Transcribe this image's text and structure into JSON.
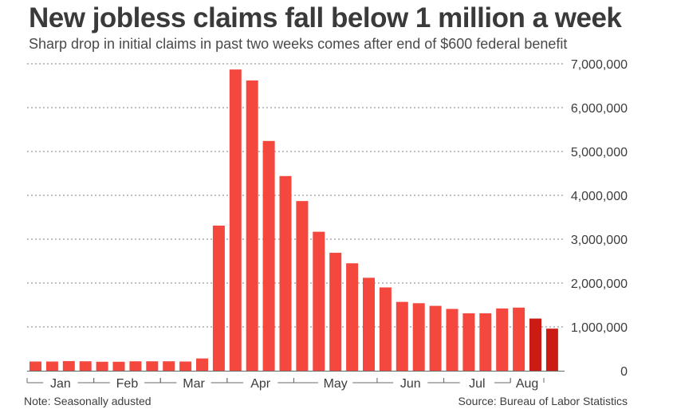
{
  "chart_data": {
    "type": "bar",
    "title": "New jobless claims fall below 1 million a week",
    "subtitle": "Sharp drop in initial claims in past two weeks comes after end of $600 federal benefit",
    "xlabel": "",
    "ylabel": "",
    "ylim": [
      0,
      7000000
    ],
    "grid": true,
    "y_ticks": [
      0,
      1000000,
      2000000,
      3000000,
      4000000,
      5000000,
      6000000,
      7000000
    ],
    "y_tick_labels": [
      "0",
      "1,000,000",
      "2,000,000",
      "3,000,000",
      "4,000,000",
      "5,000,000",
      "6,000,000",
      "7,000,000"
    ],
    "month_labels": [
      "Jan",
      "Feb",
      "Mar",
      "Apr",
      "May",
      "Jun",
      "Jul",
      "Aug"
    ],
    "month_spans": [
      [
        0,
        3
      ],
      [
        4,
        7
      ],
      [
        8,
        11
      ],
      [
        12,
        15
      ],
      [
        16,
        20
      ],
      [
        21,
        24
      ],
      [
        25,
        28
      ],
      [
        29,
        30
      ]
    ],
    "values": [
      210000,
      210000,
      220000,
      215000,
      205000,
      205000,
      215000,
      215000,
      215000,
      210000,
      280000,
      3310000,
      6870000,
      6620000,
      5240000,
      4440000,
      3870000,
      3170000,
      2690000,
      2450000,
      2120000,
      1900000,
      1570000,
      1540000,
      1480000,
      1410000,
      1310000,
      1310000,
      1420000,
      1440000,
      1190000,
      960000
    ],
    "highlight_indices": [
      30,
      31
    ],
    "colors": {
      "bar": "#f4473d",
      "highlight": "#cc1a14",
      "grid": "#9a9a9a",
      "axis": "#6a6a6a",
      "text": "#3c3c3c"
    }
  },
  "footer": {
    "note": "Note: Seasonally adusted",
    "source": "Source: Bureau of Labor Statistics"
  }
}
